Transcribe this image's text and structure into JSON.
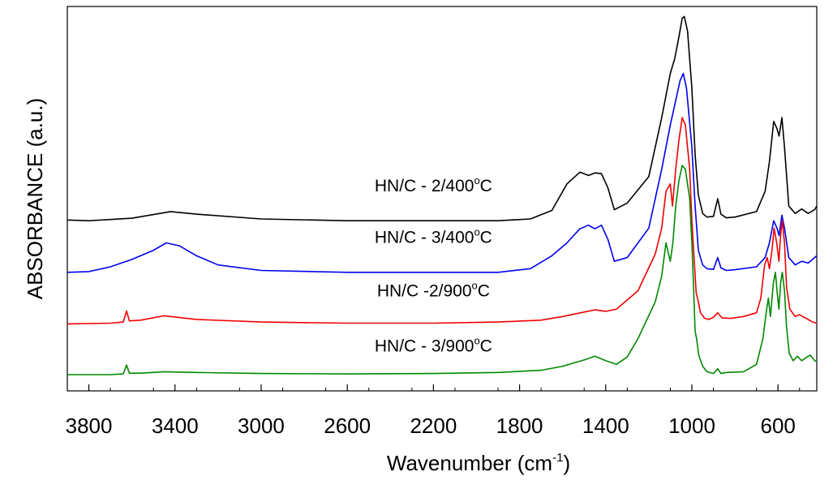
{
  "chart_data": {
    "type": "line",
    "xlabel": "Wavenumber (cm",
    "xlabel_sup": "-1",
    "xlabel_close": ")",
    "ylabel": "ABSORBANCE (a.u.)",
    "x_reversed": true,
    "xlim": [
      3900,
      420
    ],
    "ylim": [
      0,
      1
    ],
    "y_ticks_labeled": false,
    "grid": false,
    "xticks": [
      3800,
      3400,
      3000,
      2600,
      2200,
      1800,
      1400,
      1000,
      600
    ],
    "xtick_labels": [
      "3800",
      "3400",
      "3000",
      "2600",
      "2200",
      "1800",
      "1400",
      "1000",
      "600"
    ],
    "series": [
      {
        "name": "HN/C - 2/400",
        "label_suffix": "C",
        "label_sup": "o",
        "color": "#000000",
        "points": [
          [
            3900,
            0.442
          ],
          [
            3800,
            0.44
          ],
          [
            3600,
            0.447
          ],
          [
            3420,
            0.465
          ],
          [
            3300,
            0.458
          ],
          [
            3000,
            0.445
          ],
          [
            2600,
            0.44
          ],
          [
            2200,
            0.44
          ],
          [
            1900,
            0.44
          ],
          [
            1750,
            0.445
          ],
          [
            1650,
            0.468
          ],
          [
            1580,
            0.54
          ],
          [
            1520,
            0.572
          ],
          [
            1480,
            0.563
          ],
          [
            1450,
            0.57
          ],
          [
            1420,
            0.568
          ],
          [
            1390,
            0.53
          ],
          [
            1360,
            0.47
          ],
          [
            1300,
            0.488
          ],
          [
            1200,
            0.56
          ],
          [
            1140,
            0.72
          ],
          [
            1100,
            0.84
          ],
          [
            1080,
            0.88
          ],
          [
            1060,
            0.94
          ],
          [
            1045,
            0.99
          ],
          [
            1035,
            0.995
          ],
          [
            1020,
            0.955
          ],
          [
            1000,
            0.8
          ],
          [
            985,
            0.62
          ],
          [
            970,
            0.51
          ],
          [
            950,
            0.46
          ],
          [
            930,
            0.45
          ],
          [
            900,
            0.452
          ],
          [
            880,
            0.5
          ],
          [
            865,
            0.458
          ],
          [
            840,
            0.448
          ],
          [
            800,
            0.45
          ],
          [
            700,
            0.465
          ],
          [
            660,
            0.52
          ],
          [
            640,
            0.6
          ],
          [
            620,
            0.71
          ],
          [
            605,
            0.69
          ],
          [
            595,
            0.67
          ],
          [
            582,
            0.72
          ],
          [
            570,
            0.64
          ],
          [
            550,
            0.48
          ],
          [
            520,
            0.46
          ],
          [
            490,
            0.472
          ],
          [
            460,
            0.46
          ],
          [
            430,
            0.47
          ],
          [
            420,
            0.48
          ]
        ]
      },
      {
        "name": "HN/C - 3/400",
        "label_suffix": "C",
        "label_sup": "o",
        "color": "#0000ee",
        "points": [
          [
            3900,
            0.3
          ],
          [
            3800,
            0.302
          ],
          [
            3700,
            0.315
          ],
          [
            3600,
            0.335
          ],
          [
            3500,
            0.36
          ],
          [
            3440,
            0.38
          ],
          [
            3380,
            0.372
          ],
          [
            3300,
            0.345
          ],
          [
            3200,
            0.32
          ],
          [
            3000,
            0.305
          ],
          [
            2600,
            0.3
          ],
          [
            2200,
            0.3
          ],
          [
            1900,
            0.3
          ],
          [
            1750,
            0.31
          ],
          [
            1650,
            0.345
          ],
          [
            1580,
            0.38
          ],
          [
            1520,
            0.418
          ],
          [
            1480,
            0.428
          ],
          [
            1450,
            0.418
          ],
          [
            1420,
            0.428
          ],
          [
            1390,
            0.39
          ],
          [
            1360,
            0.33
          ],
          [
            1300,
            0.34
          ],
          [
            1200,
            0.42
          ],
          [
            1140,
            0.58
          ],
          [
            1100,
            0.7
          ],
          [
            1070,
            0.78
          ],
          [
            1055,
            0.82
          ],
          [
            1040,
            0.84
          ],
          [
            1025,
            0.8
          ],
          [
            1000,
            0.64
          ],
          [
            985,
            0.48
          ],
          [
            970,
            0.36
          ],
          [
            950,
            0.32
          ],
          [
            930,
            0.31
          ],
          [
            900,
            0.308
          ],
          [
            880,
            0.34
          ],
          [
            865,
            0.312
          ],
          [
            840,
            0.305
          ],
          [
            800,
            0.307
          ],
          [
            700,
            0.315
          ],
          [
            660,
            0.34
          ],
          [
            640,
            0.38
          ],
          [
            620,
            0.44
          ],
          [
            605,
            0.42
          ],
          [
            595,
            0.4
          ],
          [
            582,
            0.455
          ],
          [
            570,
            0.42
          ],
          [
            550,
            0.34
          ],
          [
            520,
            0.32
          ],
          [
            490,
            0.33
          ],
          [
            460,
            0.325
          ],
          [
            430,
            0.34
          ],
          [
            420,
            0.345
          ]
        ]
      },
      {
        "name": "HN/C -2/900",
        "label_suffix": "C",
        "label_sup": "o",
        "color": "#ee0000",
        "points": [
          [
            3900,
            0.16
          ],
          [
            3700,
            0.162
          ],
          [
            3640,
            0.165
          ],
          [
            3625,
            0.195
          ],
          [
            3612,
            0.168
          ],
          [
            3560,
            0.17
          ],
          [
            3450,
            0.182
          ],
          [
            3300,
            0.172
          ],
          [
            3000,
            0.165
          ],
          [
            2600,
            0.162
          ],
          [
            2200,
            0.162
          ],
          [
            1900,
            0.165
          ],
          [
            1700,
            0.17
          ],
          [
            1600,
            0.18
          ],
          [
            1500,
            0.192
          ],
          [
            1450,
            0.198
          ],
          [
            1400,
            0.194
          ],
          [
            1350,
            0.2
          ],
          [
            1250,
            0.25
          ],
          [
            1170,
            0.35
          ],
          [
            1140,
            0.42
          ],
          [
            1120,
            0.52
          ],
          [
            1100,
            0.54
          ],
          [
            1090,
            0.48
          ],
          [
            1075,
            0.58
          ],
          [
            1060,
            0.66
          ],
          [
            1045,
            0.72
          ],
          [
            1030,
            0.7
          ],
          [
            1010,
            0.58
          ],
          [
            1000,
            0.44
          ],
          [
            990,
            0.34
          ],
          [
            980,
            0.245
          ],
          [
            970,
            0.22
          ],
          [
            960,
            0.19
          ],
          [
            940,
            0.175
          ],
          [
            920,
            0.172
          ],
          [
            900,
            0.178
          ],
          [
            880,
            0.19
          ],
          [
            860,
            0.176
          ],
          [
            820,
            0.175
          ],
          [
            760,
            0.18
          ],
          [
            700,
            0.19
          ],
          [
            680,
            0.23
          ],
          [
            662,
            0.32
          ],
          [
            650,
            0.34
          ],
          [
            640,
            0.31
          ],
          [
            628,
            0.36
          ],
          [
            618,
            0.42
          ],
          [
            606,
            0.38
          ],
          [
            596,
            0.33
          ],
          [
            588,
            0.4
          ],
          [
            580,
            0.44
          ],
          [
            570,
            0.38
          ],
          [
            560,
            0.26
          ],
          [
            545,
            0.2
          ],
          [
            520,
            0.18
          ],
          [
            500,
            0.185
          ],
          [
            480,
            0.178
          ],
          [
            460,
            0.172
          ],
          [
            440,
            0.165
          ],
          [
            420,
            0.162
          ]
        ]
      },
      {
        "name": "HN/C - 3/900",
        "label_suffix": "C",
        "label_sup": "o",
        "color": "#008800",
        "points": [
          [
            3900,
            0.022
          ],
          [
            3700,
            0.022
          ],
          [
            3640,
            0.024
          ],
          [
            3625,
            0.048
          ],
          [
            3612,
            0.026
          ],
          [
            3560,
            0.026
          ],
          [
            3450,
            0.03
          ],
          [
            3300,
            0.028
          ],
          [
            3000,
            0.025
          ],
          [
            2600,
            0.024
          ],
          [
            2200,
            0.025
          ],
          [
            1900,
            0.028
          ],
          [
            1700,
            0.034
          ],
          [
            1600,
            0.045
          ],
          [
            1500,
            0.062
          ],
          [
            1450,
            0.072
          ],
          [
            1400,
            0.06
          ],
          [
            1350,
            0.05
          ],
          [
            1300,
            0.07
          ],
          [
            1250,
            0.12
          ],
          [
            1170,
            0.22
          ],
          [
            1140,
            0.29
          ],
          [
            1120,
            0.38
          ],
          [
            1100,
            0.33
          ],
          [
            1088,
            0.38
          ],
          [
            1075,
            0.48
          ],
          [
            1060,
            0.55
          ],
          [
            1045,
            0.59
          ],
          [
            1030,
            0.58
          ],
          [
            1010,
            0.5
          ],
          [
            1000,
            0.38
          ],
          [
            992,
            0.26
          ],
          [
            985,
            0.14
          ],
          [
            978,
            0.12
          ],
          [
            968,
            0.075
          ],
          [
            950,
            0.045
          ],
          [
            930,
            0.03
          ],
          [
            900,
            0.025
          ],
          [
            880,
            0.038
          ],
          [
            865,
            0.025
          ],
          [
            840,
            0.028
          ],
          [
            760,
            0.03
          ],
          [
            700,
            0.05
          ],
          [
            670,
            0.12
          ],
          [
            655,
            0.19
          ],
          [
            645,
            0.23
          ],
          [
            635,
            0.18
          ],
          [
            622,
            0.27
          ],
          [
            612,
            0.3
          ],
          [
            603,
            0.24
          ],
          [
            596,
            0.2
          ],
          [
            588,
            0.27
          ],
          [
            580,
            0.3
          ],
          [
            570,
            0.25
          ],
          [
            560,
            0.15
          ],
          [
            548,
            0.08
          ],
          [
            530,
            0.06
          ],
          [
            510,
            0.072
          ],
          [
            490,
            0.06
          ],
          [
            470,
            0.068
          ],
          [
            450,
            0.075
          ],
          [
            430,
            0.06
          ],
          [
            420,
            0.058
          ]
        ]
      }
    ],
    "series_label_anchors": [
      {
        "x": 2200,
        "y": 0.52
      },
      {
        "x": 2200,
        "y": 0.38
      },
      {
        "x": 2200,
        "y": 0.235
      },
      {
        "x": 2200,
        "y": 0.085
      }
    ]
  }
}
